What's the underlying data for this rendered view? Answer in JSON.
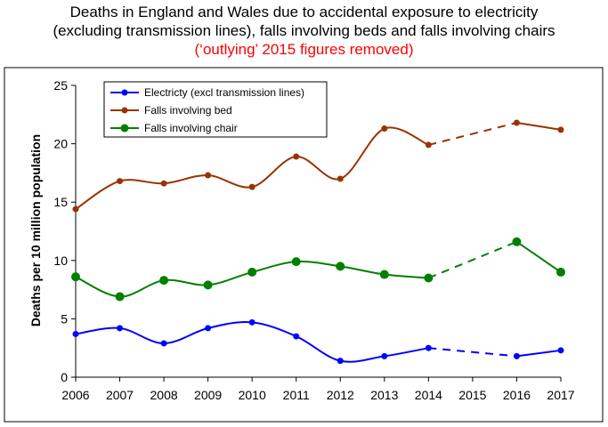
{
  "chart_data": {
    "type": "line",
    "title_lines": [
      "Deaths in England and Wales due to accidental exposure to electricity",
      "(excluding transmission lines), falls involving beds and falls involving chairs"
    ],
    "subtitle": "(‘outlying’ 2015 figures removed)",
    "subtitle_color": "#ff0000",
    "xlabel": "",
    "ylabel": "Deaths per 10 million population",
    "categories": [
      "2006",
      "2007",
      "2008",
      "2009",
      "2010",
      "2011",
      "2012",
      "2013",
      "2014",
      "2015",
      "2016",
      "2017"
    ],
    "ylim": [
      0,
      25
    ],
    "yticks": [
      "0",
      "5",
      "10",
      "15",
      "20",
      "25"
    ],
    "grid": false,
    "legend_position": "top-left",
    "missing_category": "2015",
    "gap_style": "dashed",
    "series": [
      {
        "name": "Electricty (excl transmission lines)",
        "color": "#0000ff",
        "marker_size": "small",
        "values": [
          3.7,
          4.2,
          2.9,
          4.2,
          4.7,
          3.5,
          1.4,
          1.8,
          2.5,
          null,
          1.8,
          2.3
        ]
      },
      {
        "name": "Falls involving bed",
        "color": "#993300",
        "marker_size": "small",
        "values": [
          14.4,
          16.8,
          16.6,
          17.3,
          16.3,
          18.9,
          17.0,
          21.3,
          19.9,
          null,
          21.8,
          21.2
        ]
      },
      {
        "name": "Falls involving chair",
        "color": "#008000",
        "marker_size": "large",
        "values": [
          8.6,
          6.9,
          8.3,
          7.9,
          9.0,
          9.9,
          9.5,
          8.8,
          8.5,
          null,
          11.6,
          9.0
        ]
      }
    ]
  }
}
